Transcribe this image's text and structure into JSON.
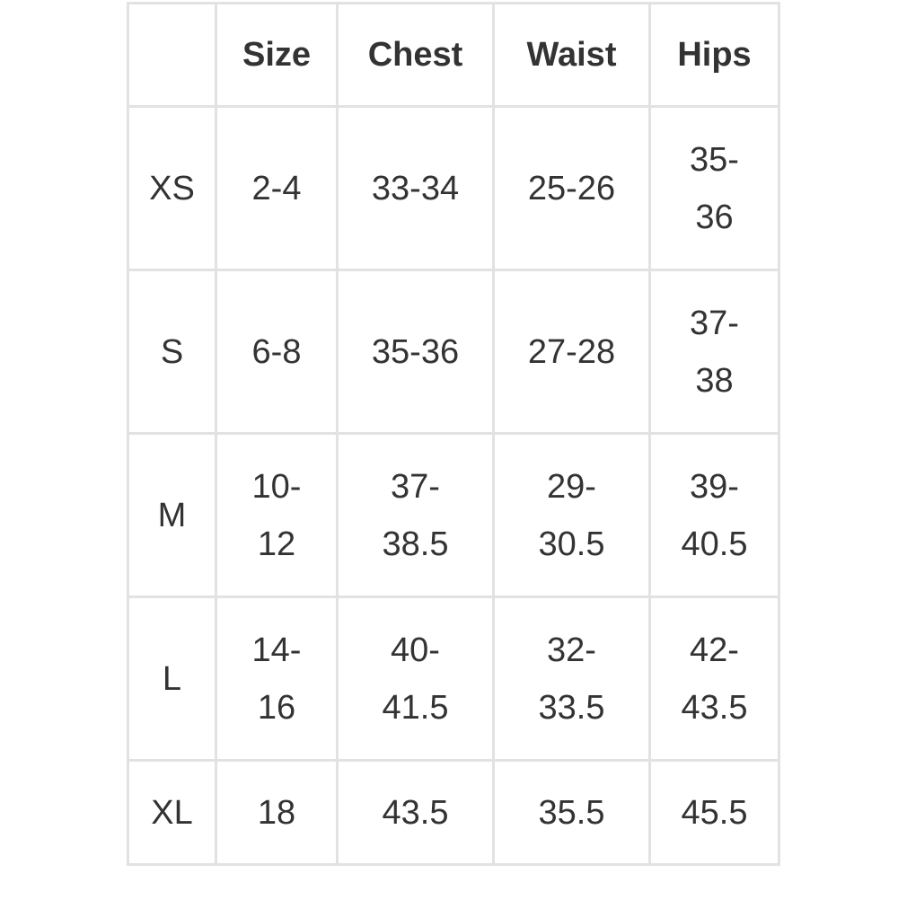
{
  "headers": [
    "",
    "Size",
    "Chest",
    "Waist",
    "Hips"
  ],
  "rows": [
    {
      "label": "XS",
      "size": "2-4",
      "chest": "33-34",
      "waist": "25-26",
      "hips": "35-36"
    },
    {
      "label": "S",
      "size": "6-8",
      "chest": "35-36",
      "waist": "27-28",
      "hips": "37-38"
    },
    {
      "label": "M",
      "size": "10-12",
      "chest": "37-38.5",
      "waist": "29-30.5",
      "hips": "39-40.5"
    },
    {
      "label": "L",
      "size": "14-16",
      "chest": "40-41.5",
      "waist": "32-33.5",
      "hips": "42-43.5"
    },
    {
      "label": "XL",
      "size": "18",
      "chest": "43.5",
      "waist": "35.5",
      "hips": "45.5"
    }
  ]
}
